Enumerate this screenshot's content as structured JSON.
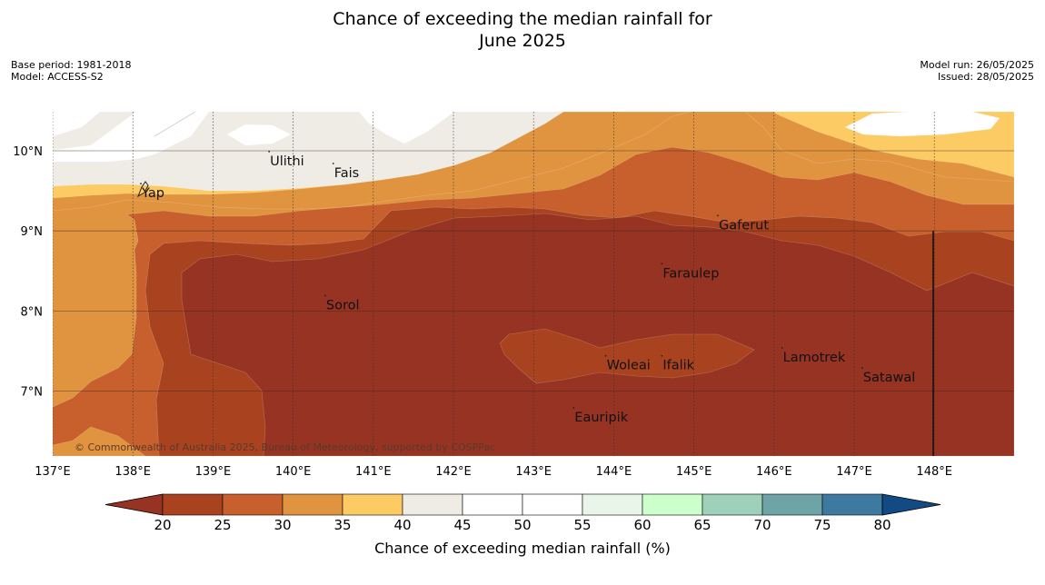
{
  "title_line1": "Chance of exceeding the median rainfall for",
  "title_line2": "June 2025",
  "meta": {
    "base_period": "Base period: 1981-2018",
    "model": "Model: ACCESS-S2",
    "model_run": "Model run: 26/05/2025",
    "issued": "Issued: 28/05/2025"
  },
  "lon_labels": [
    {
      "lon": 137,
      "label": "137°E"
    },
    {
      "lon": 138,
      "label": "138°E"
    },
    {
      "lon": 139,
      "label": "139°E"
    },
    {
      "lon": 140,
      "label": "140°E"
    },
    {
      "lon": 141,
      "label": "141°E"
    },
    {
      "lon": 142,
      "label": "142°E"
    },
    {
      "lon": 143,
      "label": "143°E"
    },
    {
      "lon": 144,
      "label": "144°E"
    },
    {
      "lon": 145,
      "label": "145°E"
    },
    {
      "lon": 146,
      "label": "146°E"
    },
    {
      "lon": 147,
      "label": "147°E"
    },
    {
      "lon": 148,
      "label": "148°E"
    }
  ],
  "lat_labels": [
    {
      "lat": 10,
      "label": "10°N"
    },
    {
      "lat": 9,
      "label": "9°N"
    },
    {
      "lat": 8,
      "label": "8°N"
    },
    {
      "lat": 7,
      "label": "7°N"
    }
  ],
  "places": [
    {
      "name": "Ulithi",
      "lon": 139.7,
      "lat": 9.9
    },
    {
      "name": "Fais",
      "lon": 140.5,
      "lat": 9.75
    },
    {
      "name": "Yap",
      "lon": 138.1,
      "lat": 9.5
    },
    {
      "name": "Gaferut",
      "lon": 145.3,
      "lat": 9.1
    },
    {
      "name": "Faraulep",
      "lon": 144.6,
      "lat": 8.5
    },
    {
      "name": "Sorol",
      "lon": 140.4,
      "lat": 8.1
    },
    {
      "name": "Lamotrek",
      "lon": 146.1,
      "lat": 7.45
    },
    {
      "name": "Satawal",
      "lon": 147.1,
      "lat": 7.2
    },
    {
      "name": "Woleai",
      "lon": 143.9,
      "lat": 7.35
    },
    {
      "name": "Ifalik",
      "lon": 144.6,
      "lat": 7.35
    },
    {
      "name": "Eauripik",
      "lon": 143.5,
      "lat": 6.7
    }
  ],
  "copyright": "© Commonwealth of Australia 2025, Bureau of Meteorology, supported by COSPPac",
  "colorbar": {
    "label": "Chance of exceeding median rainfall (%)",
    "ticks": [
      "20",
      "25",
      "30",
      "35",
      "40",
      "45",
      "50",
      "55",
      "60",
      "65",
      "70",
      "75",
      "80"
    ],
    "colors": [
      "#a9431f",
      "#c8602d",
      "#e19440",
      "#fdcb64",
      "#efece6",
      "#ffffff",
      "#ffffff",
      "#eaf5ea",
      "#ccffcc",
      "#9fd0ba",
      "#6ea4a6",
      "#3e7a9f"
    ],
    "under_color": "#973322",
    "over_color": "#124b84"
  },
  "field_colors": {
    "lt20": "#973322",
    "c20_25": "#a9431f",
    "c25_30": "#c8602d",
    "c30_35": "#e19440",
    "c35_40": "#fdcb64",
    "c40_45": "#efece6",
    "c45_55": "#ffffff"
  }
}
